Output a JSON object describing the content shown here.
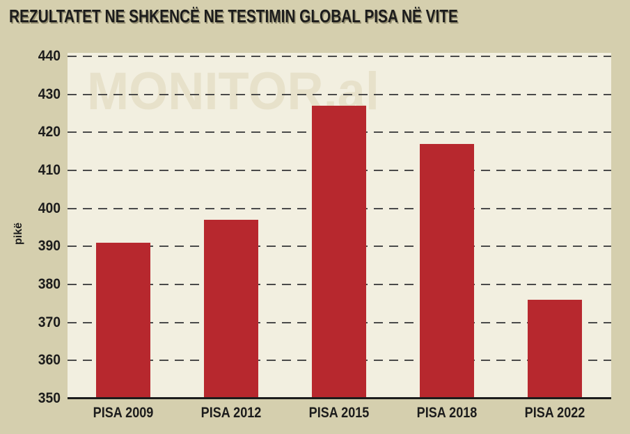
{
  "chart_data": {
    "type": "bar",
    "title": "REZULTATET NE SHKENCË NE TESTIMIN GLOBAL PISA NË VITE",
    "watermark": "MONITOR.al",
    "categories": [
      "PISA 2009",
      "PISA 2012",
      "PISA 2015",
      "PISA 2018",
      "PISA 2022"
    ],
    "values": [
      391,
      397,
      427,
      417,
      376
    ],
    "xlabel": "",
    "ylabel": "pikë",
    "ylim": [
      350,
      440
    ],
    "yticks": [
      440,
      430,
      420,
      410,
      400,
      390,
      380,
      370,
      360,
      350
    ],
    "grid": "horizontal-dashed",
    "legend": "none"
  },
  "colors": {
    "background": "#d5cfae",
    "plot_background": "#f2efe0",
    "bar": "#b7282e",
    "gridline": "#4a4a4a",
    "axis_line": "#1c1c1c",
    "text": "#1c1c1c",
    "watermark": "#e7e1ca"
  }
}
